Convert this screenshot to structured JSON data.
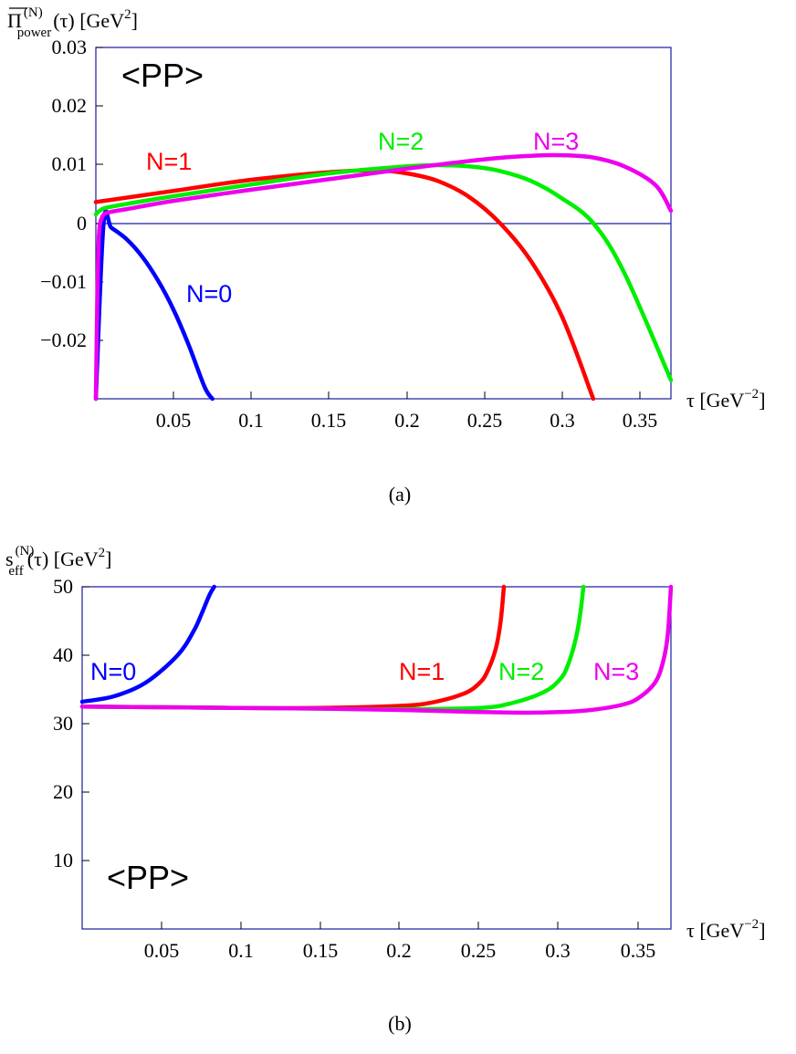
{
  "chart_data": [
    {
      "type": "line",
      "panel": "a",
      "caption": "(a)",
      "annotation": "<PP>",
      "ylabel": {
        "pre": "Π",
        "sup": "(N)",
        "sub": "power",
        "mid": "(τ) [GeV",
        "sup2": "2",
        "post": "]"
      },
      "xlabel": {
        "pre": "τ [GeV",
        "sup": "−2",
        "post": "]"
      },
      "xlim": [
        0,
        0.37
      ],
      "ylim": [
        -0.03,
        0.03
      ],
      "xticks": [
        0.05,
        0.1,
        0.15,
        0.2,
        0.25,
        0.3,
        0.35
      ],
      "xtick_labels": [
        "0.05",
        "0.1",
        "0.15",
        "0.2",
        "0.25",
        "0.3",
        "0.35"
      ],
      "yticks": [
        0.03,
        0.02,
        0.01,
        0,
        -0.01,
        -0.02
      ],
      "ytick_labels": [
        "0.03",
        "0.02",
        "0.01",
        "0",
        "−0.01",
        "−0.02"
      ],
      "zero_line": true,
      "series": [
        {
          "name": "N=0",
          "color": "#0000ff",
          "x": [
            0,
            0.005,
            0.01,
            0.02,
            0.03,
            0.04,
            0.05,
            0.06,
            0.07,
            0.075
          ],
          "y": [
            -0.03,
            0.0,
            -0.0008,
            -0.0028,
            -0.0058,
            -0.0098,
            -0.0148,
            -0.021,
            -0.028,
            -0.03
          ]
        },
        {
          "name": "N=1",
          "color": "#ff0000",
          "x": [
            0,
            0.05,
            0.1,
            0.15,
            0.18,
            0.2,
            0.22,
            0.24,
            0.26,
            0.28,
            0.3,
            0.32
          ],
          "y": [
            0.0036,
            0.0055,
            0.0074,
            0.0087,
            0.009,
            0.0085,
            0.0072,
            0.0045,
            0.0,
            -0.0065,
            -0.016,
            -0.03
          ]
        },
        {
          "name": "N=2",
          "color": "#00ee00",
          "x": [
            0,
            0.003,
            0.01,
            0.05,
            0.1,
            0.15,
            0.2,
            0.22,
            0.24,
            0.26,
            0.28,
            0.3,
            0.32,
            0.34,
            0.37
          ],
          "y": [
            0.0015,
            0.0022,
            0.0028,
            0.0046,
            0.0066,
            0.0085,
            0.0097,
            0.0099,
            0.0097,
            0.0089,
            0.0072,
            0.0042,
            0.0,
            -0.0085,
            -0.0268
          ]
        },
        {
          "name": "N=3",
          "color": "#ee00ee",
          "x": [
            0,
            0.001,
            0.002,
            0.004,
            0.008,
            0.02,
            0.05,
            0.1,
            0.15,
            0.2,
            0.25,
            0.28,
            0.3,
            0.32,
            0.34,
            0.36,
            0.37
          ],
          "y": [
            -0.03,
            -0.012,
            -0.002,
            0.001,
            0.0018,
            0.0024,
            0.0038,
            0.0057,
            0.0075,
            0.0093,
            0.0109,
            0.0115,
            0.0116,
            0.0112,
            0.0097,
            0.0065,
            0.0021
          ]
        }
      ]
    },
    {
      "type": "line",
      "panel": "b",
      "caption": "(b)",
      "annotation": "<PP>",
      "ylabel": {
        "pre": "s",
        "sup": "(N)",
        "sub": "eff",
        "mid": "(τ) [GeV",
        "sup2": "2",
        "post": "]"
      },
      "xlabel": {
        "pre": "τ [GeV",
        "sup": "−2",
        "post": "]"
      },
      "xlim": [
        0,
        0.37
      ],
      "ylim": [
        0,
        50
      ],
      "xticks": [
        0.05,
        0.1,
        0.15,
        0.2,
        0.25,
        0.3,
        0.35
      ],
      "xtick_labels": [
        "0.05",
        "0.1",
        "0.15",
        "0.2",
        "0.25",
        "0.3",
        "0.35"
      ],
      "yticks": [
        50,
        40,
        30,
        20,
        10
      ],
      "ytick_labels": [
        "50",
        "40",
        "30",
        "20",
        "10"
      ],
      "zero_line": false,
      "series": [
        {
          "name": "N=0",
          "color": "#0000ff",
          "x": [
            0,
            0.02,
            0.04,
            0.06,
            0.07,
            0.075,
            0.08,
            0.083
          ],
          "y": [
            33.2,
            34.0,
            36.0,
            40.0,
            43.5,
            46.0,
            48.8,
            50
          ]
        },
        {
          "name": "N=1",
          "color": "#ff0000",
          "x": [
            0,
            0.05,
            0.1,
            0.15,
            0.2,
            0.22,
            0.24,
            0.25,
            0.255,
            0.26,
            0.263,
            0.265
          ],
          "y": [
            32.5,
            32.4,
            32.3,
            32.3,
            32.6,
            33.1,
            34.4,
            36.0,
            37.8,
            41.0,
            45.0,
            50
          ]
        },
        {
          "name": "N=2",
          "color": "#00ee00",
          "x": [
            0,
            0.05,
            0.1,
            0.15,
            0.2,
            0.25,
            0.27,
            0.29,
            0.3,
            0.305,
            0.31,
            0.313,
            0.315
          ],
          "y": [
            32.5,
            32.4,
            32.3,
            32.2,
            32.1,
            32.3,
            33.0,
            34.6,
            36.4,
            38.4,
            42.2,
            46.0,
            50
          ]
        },
        {
          "name": "N=3",
          "color": "#ee00ee",
          "x": [
            0,
            0.05,
            0.1,
            0.15,
            0.2,
            0.25,
            0.28,
            0.3,
            0.32,
            0.34,
            0.35,
            0.36,
            0.365,
            0.368,
            0.37
          ],
          "y": [
            32.5,
            32.4,
            32.3,
            32.2,
            32.0,
            31.7,
            31.6,
            31.7,
            32.0,
            32.8,
            33.8,
            36.0,
            39.0,
            43.0,
            50
          ]
        }
      ]
    }
  ]
}
